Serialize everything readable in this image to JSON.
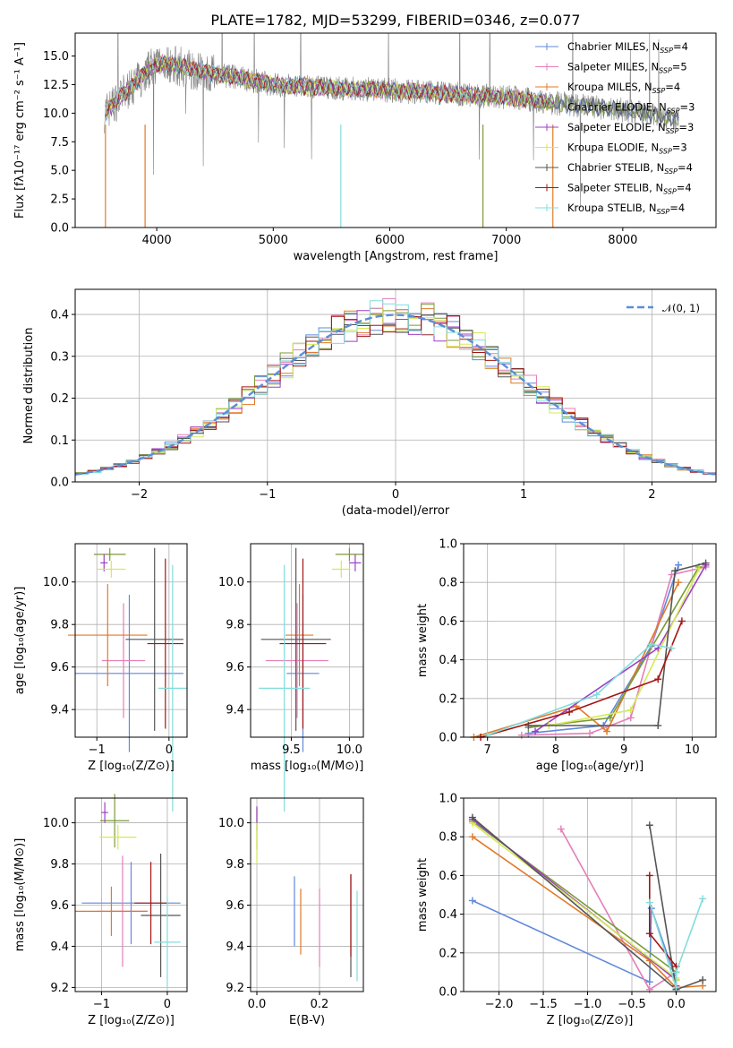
{
  "colors": {
    "chabrier_miles": "#6189dc",
    "salpeter_miles": "#e47fb8",
    "kroupa_miles": "#e07a27",
    "chabrier_elodie": "#7c9a3a",
    "salpeter_elodie": "#9d3fc4",
    "kroupa_elodie": "#d4ea56",
    "chabrier_stelib": "#555555",
    "salpeter_stelib": "#a31414",
    "kroupa_stelib": "#82dcdc",
    "normal_curve": "#5b8ed6",
    "data_spectrum": "#808080"
  },
  "chart_data": [
    {
      "id": "spectrum",
      "type": "line",
      "title": "PLATE=1782, MJD=53299, FIBERID=0346, z=0.077",
      "xlabel": "wavelength [Angstrom, rest frame]",
      "ylabel": "Flux [fλ10⁻¹⁷ erg cm⁻² s⁻¹ A⁻¹]",
      "xlim": [
        3300,
        8800
      ],
      "ylim": [
        0,
        17
      ],
      "xticks": [
        "4000",
        "5000",
        "6000",
        "7000",
        "8000"
      ],
      "yticks": [
        "0.0",
        "2.5",
        "5.0",
        "7.5",
        "10.0",
        "12.5",
        "15.0"
      ],
      "continuum_model": [
        [
          3550,
          10.0
        ],
        [
          3700,
          11.5
        ],
        [
          3850,
          13.0
        ],
        [
          3950,
          14.0
        ],
        [
          4050,
          14.5
        ],
        [
          4300,
          13.8
        ],
        [
          4500,
          13.5
        ],
        [
          5000,
          12.5
        ],
        [
          5500,
          12.2
        ],
        [
          6000,
          12.0
        ],
        [
          6500,
          11.7
        ],
        [
          7000,
          11.4
        ],
        [
          7500,
          10.8
        ],
        [
          8000,
          10.3
        ],
        [
          8500,
          9.4
        ]
      ],
      "legend": [
        {
          "label": "Chabrier MILES, N",
          "sub": "SSP",
          "suffix": "=4",
          "color": "#6189dc"
        },
        {
          "label": "Salpeter MILES, N",
          "sub": "SSP",
          "suffix": "=5",
          "color": "#e47fb8"
        },
        {
          "label": "Kroupa MILES, N",
          "sub": "SSP",
          "suffix": "=4",
          "color": "#e07a27"
        },
        {
          "label": "Chabrier ELODIE, N",
          "sub": "SSP",
          "suffix": "=3",
          "color": "#7c9a3a"
        },
        {
          "label": "Salpeter ELODIE, N",
          "sub": "SSP",
          "suffix": "=3",
          "color": "#9d3fc4"
        },
        {
          "label": "Kroupa ELODIE, N",
          "sub": "SSP",
          "suffix": "=3",
          "color": "#d4ea56"
        },
        {
          "label": "Chabrier STELIB, N",
          "sub": "SSP",
          "suffix": "=4",
          "color": "#555555"
        },
        {
          "label": "Salpeter STELIB, N",
          "sub": "SSP",
          "suffix": "=4",
          "color": "#a31414"
        },
        {
          "label": "Kroupa STELIB, N",
          "sub": "SSP",
          "suffix": "=4",
          "color": "#82dcdc"
        }
      ]
    },
    {
      "id": "residuals",
      "type": "histogram",
      "xlabel": "(data-model)/error",
      "ylabel": "Normed distribution",
      "xlim": [
        -2.5,
        2.5
      ],
      "ylim": [
        0,
        0.46
      ],
      "xticks": [
        -2,
        -1,
        0,
        1,
        2
      ],
      "xtick_labels": [
        "−2",
        "−1",
        "0",
        "1",
        "2"
      ],
      "yticks": [
        0.0,
        0.1,
        0.2,
        0.3,
        0.4
      ],
      "ytick_labels": [
        "0.0",
        "0.1",
        "0.2",
        "0.3",
        "0.4"
      ],
      "bin_width": 0.1,
      "legend_label": "𝒩(0, 1)",
      "grid": true
    },
    {
      "id": "age_vs_Z",
      "type": "errorbar",
      "xlabel": "Z [log₁₀(Z/Z⊙)]",
      "ylabel": "age  [log₁₀(age/yr)]",
      "xlim": [
        -1.3,
        0.25
      ],
      "ylim": [
        9.27,
        10.18
      ],
      "xticks": [
        -1,
        0
      ],
      "xtick_labels": [
        "−1",
        "0"
      ],
      "yticks": [
        9.4,
        9.6,
        9.8,
        10.0
      ],
      "ytick_labels": [
        "9.4",
        "9.6",
        "9.8",
        "10.0"
      ],
      "points": [
        {
          "c": "#6189dc",
          "x": -0.55,
          "xerr": 0.75,
          "y": 9.57,
          "yerr": 0.37
        },
        {
          "c": "#e47fb8",
          "x": -0.63,
          "xerr": 0.3,
          "y": 9.63,
          "yerr": 0.27
        },
        {
          "c": "#e07a27",
          "x": -0.85,
          "xerr": 0.55,
          "y": 9.75,
          "yerr": 0.24
        },
        {
          "c": "#7c9a3a",
          "x": -0.82,
          "xerr": 0.22,
          "y": 10.13,
          "yerr": 0.03
        },
        {
          "c": "#9d3fc4",
          "x": -0.9,
          "xerr": 0.05,
          "y": 10.09,
          "yerr": 0.04
        },
        {
          "c": "#d4ea56",
          "x": -0.8,
          "xerr": 0.2,
          "y": 10.06,
          "yerr": 0.04
        },
        {
          "c": "#555555",
          "x": -0.2,
          "xerr": 0.4,
          "y": 9.73,
          "yerr": 0.43
        },
        {
          "c": "#a31414",
          "x": -0.05,
          "xerr": 0.25,
          "y": 9.71,
          "yerr": 0.4
        },
        {
          "c": "#82dcdc",
          "x": 0.05,
          "xerr": 0.2,
          "y": 9.5,
          "yerr": 0.58
        }
      ]
    },
    {
      "id": "age_vs_mass",
      "type": "errorbar",
      "xlabel": "mass [log₁₀(M/M⊙)]",
      "ylabel": "",
      "xlim": [
        9.15,
        10.12
      ],
      "ylim": [
        9.27,
        10.18
      ],
      "xticks": [
        9.5,
        10.0
      ],
      "xtick_labels": [
        "9.5",
        "10.0"
      ],
      "yticks": [
        9.4,
        9.6,
        9.8,
        10.0
      ],
      "ytick_labels": [
        "9.4",
        "9.6",
        "9.8",
        "10.0"
      ],
      "points": [
        {
          "c": "#6189dc",
          "x": 9.6,
          "xerr": 0.14,
          "y": 9.57,
          "yerr": 0.37
        },
        {
          "c": "#e47fb8",
          "x": 9.55,
          "xerr": 0.27,
          "y": 9.63,
          "yerr": 0.27
        },
        {
          "c": "#e07a27",
          "x": 9.57,
          "xerr": 0.12,
          "y": 9.75,
          "yerr": 0.24
        },
        {
          "c": "#7c9a3a",
          "x": 10.0,
          "xerr": 0.12,
          "y": 10.13,
          "yerr": 0.03
        },
        {
          "c": "#9d3fc4",
          "x": 10.05,
          "xerr": 0.05,
          "y": 10.09,
          "yerr": 0.04
        },
        {
          "c": "#d4ea56",
          "x": 9.93,
          "xerr": 0.08,
          "y": 10.06,
          "yerr": 0.04
        },
        {
          "c": "#555555",
          "x": 9.54,
          "xerr": 0.3,
          "y": 9.73,
          "yerr": 0.43
        },
        {
          "c": "#a31414",
          "x": 9.6,
          "xerr": 0.2,
          "y": 9.71,
          "yerr": 0.4
        },
        {
          "c": "#82dcdc",
          "x": 9.44,
          "xerr": 0.22,
          "y": 9.5,
          "yerr": 0.58
        }
      ]
    },
    {
      "id": "weight_vs_age",
      "type": "line",
      "xlabel": "age  [log₁₀(age/yr)]",
      "ylabel": "mass weight",
      "xlim": [
        6.65,
        10.35
      ],
      "ylim": [
        0,
        1
      ],
      "xticks": [
        7,
        8,
        9,
        10
      ],
      "xtick_labels": [
        "7",
        "8",
        "9",
        "10"
      ],
      "yticks": [
        0,
        0.2,
        0.4,
        0.6,
        0.8,
        1.0
      ],
      "ytick_labels": [
        "0.0",
        "0.2",
        "0.4",
        "0.6",
        "0.8",
        "1.0"
      ],
      "series": [
        {
          "c": "#6189dc",
          "pts": [
            [
              7.6,
              0.02
            ],
            [
              8.7,
              0.06
            ],
            [
              9.4,
              0.47
            ],
            [
              9.8,
              0.89
            ]
          ]
        },
        {
          "c": "#e47fb8",
          "pts": [
            [
              7.5,
              0.01
            ],
            [
              8.5,
              0.02
            ],
            [
              9.1,
              0.1
            ],
            [
              9.7,
              0.84
            ],
            [
              10.2,
              0.88
            ]
          ]
        },
        {
          "c": "#e07a27",
          "pts": [
            [
              6.8,
              0.0
            ],
            [
              8.3,
              0.16
            ],
            [
              8.75,
              0.03
            ],
            [
              9.8,
              0.8
            ]
          ]
        },
        {
          "c": "#7c9a3a",
          "pts": [
            [
              7.6,
              0.05
            ],
            [
              8.8,
              0.1
            ],
            [
              10.1,
              0.88
            ]
          ]
        },
        {
          "c": "#9d3fc4",
          "pts": [
            [
              7.7,
              0.03
            ],
            [
              9.5,
              0.46
            ],
            [
              10.2,
              0.89
            ]
          ]
        },
        {
          "c": "#d4ea56",
          "pts": [
            [
              7.9,
              0.06
            ],
            [
              9.1,
              0.14
            ],
            [
              10.1,
              0.87
            ]
          ]
        },
        {
          "c": "#555555",
          "pts": [
            [
              7.6,
              0.06
            ],
            [
              9.5,
              0.06
            ],
            [
              9.75,
              0.86
            ],
            [
              10.2,
              0.9
            ]
          ]
        },
        {
          "c": "#a31414",
          "pts": [
            [
              6.9,
              0.0
            ],
            [
              8.2,
              0.13
            ],
            [
              9.5,
              0.3
            ],
            [
              9.85,
              0.6
            ]
          ]
        },
        {
          "c": "#82dcdc",
          "pts": [
            [
              7.0,
              0.01
            ],
            [
              8.6,
              0.22
            ],
            [
              9.4,
              0.48
            ],
            [
              9.7,
              0.46
            ]
          ]
        }
      ]
    },
    {
      "id": "mass_vs_Z",
      "type": "errorbar",
      "xlabel": "Z [log₁₀(Z/Z⊙)]",
      "ylabel": "mass [log₁₀(M/M⊙)]",
      "xlim": [
        -1.4,
        0.3
      ],
      "ylim": [
        9.18,
        10.12
      ],
      "xticks": [
        -1,
        0
      ],
      "xtick_labels": [
        "−1",
        "0"
      ],
      "yticks": [
        9.2,
        9.4,
        9.6,
        9.8,
        10.0
      ],
      "ytick_labels": [
        "9.2",
        "9.4",
        "9.6",
        "9.8",
        "10.0"
      ],
      "points": [
        {
          "c": "#6189dc",
          "x": -0.55,
          "xerr": 0.75,
          "y": 9.61,
          "yerr": 0.2
        },
        {
          "c": "#e47fb8",
          "x": -0.68,
          "xerr": 0.38,
          "y": 9.57,
          "yerr": 0.27
        },
        {
          "c": "#e07a27",
          "x": -0.85,
          "xerr": 0.55,
          "y": 9.57,
          "yerr": 0.12
        },
        {
          "c": "#7c9a3a",
          "x": -0.8,
          "xerr": 0.22,
          "y": 10.01,
          "yerr": 0.13
        },
        {
          "c": "#9d3fc4",
          "x": -0.95,
          "xerr": 0.05,
          "y": 10.05,
          "yerr": 0.05
        },
        {
          "c": "#d4ea56",
          "x": -0.75,
          "xerr": 0.28,
          "y": 9.93,
          "yerr": 0.06
        },
        {
          "c": "#555555",
          "x": -0.1,
          "xerr": 0.3,
          "y": 9.55,
          "yerr": 0.3
        },
        {
          "c": "#a31414",
          "x": -0.25,
          "xerr": 0.25,
          "y": 9.61,
          "yerr": 0.2
        },
        {
          "c": "#82dcdc",
          "x": 0.0,
          "xerr": 0.2,
          "y": 9.42,
          "yerr": 0.22
        }
      ]
    },
    {
      "id": "mass_vs_ebv",
      "type": "errorbar",
      "xlabel": "E(B-V)",
      "ylabel": "",
      "xlim": [
        -0.02,
        0.34
      ],
      "ylim": [
        9.18,
        10.12
      ],
      "xticks": [
        0.0,
        0.2
      ],
      "xtick_labels": [
        "0.0",
        "0.2"
      ],
      "yticks": [
        9.2,
        9.4,
        9.6,
        9.8,
        10.0
      ],
      "ytick_labels": [
        "9.2",
        "9.4",
        "9.6",
        "9.8",
        "10.0"
      ],
      "points": [
        {
          "c": "#6189dc",
          "x": 0.12,
          "xerr": 0,
          "y": 9.57,
          "yerr": 0.17
        },
        {
          "c": "#e47fb8",
          "x": 0.2,
          "xerr": 0,
          "y": 9.49,
          "yerr": 0.19
        },
        {
          "c": "#e07a27",
          "x": 0.14,
          "xerr": 0,
          "y": 9.52,
          "yerr": 0.16
        },
        {
          "c": "#7c9a3a",
          "x": 0.0,
          "xerr": 0,
          "y": 9.97,
          "yerr": 0.1
        },
        {
          "c": "#9d3fc4",
          "x": 0.0,
          "xerr": 0,
          "y": 10.02,
          "yerr": 0.06
        },
        {
          "c": "#d4ea56",
          "x": 0.0,
          "xerr": 0,
          "y": 9.9,
          "yerr": 0.1
        },
        {
          "c": "#555555",
          "x": 0.3,
          "xerr": 0,
          "y": 9.5,
          "yerr": 0.25
        },
        {
          "c": "#a31414",
          "x": 0.3,
          "xerr": 0,
          "y": 9.55,
          "yerr": 0.2
        },
        {
          "c": "#82dcdc",
          "x": 0.32,
          "xerr": 0,
          "y": 9.45,
          "yerr": 0.22
        }
      ]
    },
    {
      "id": "weight_vs_Z",
      "type": "line",
      "xlabel": "Z [log₁₀(Z/Z⊙)]",
      "ylabel": "mass weight",
      "xlim": [
        -2.4,
        0.45
      ],
      "ylim": [
        0,
        1
      ],
      "xticks": [
        -2.0,
        -1.5,
        -1.0,
        -0.5,
        0.0
      ],
      "xtick_labels": [
        "−2.0",
        "−1.5",
        "−1.0",
        "−0.5",
        "0.0"
      ],
      "yticks": [
        0,
        0.2,
        0.4,
        0.6,
        0.8,
        1.0
      ],
      "ytick_labels": [
        "0.0",
        "0.2",
        "0.4",
        "0.6",
        "0.8",
        "1.0"
      ],
      "series": [
        {
          "c": "#6189dc",
          "pts": [
            [
              -2.3,
              0.47
            ],
            [
              -0.3,
              0.05
            ],
            [
              -0.28,
              0.43
            ],
            [
              0.0,
              0.06
            ]
          ]
        },
        {
          "c": "#e47fb8",
          "pts": [
            [
              -1.3,
              0.84
            ],
            [
              -0.3,
              0.01
            ],
            [
              0.0,
              0.1
            ]
          ]
        },
        {
          "c": "#e07a27",
          "pts": [
            [
              -2.3,
              0.8
            ],
            [
              -0.3,
              0.16
            ],
            [
              0.0,
              0.02
            ],
            [
              0.3,
              0.03
            ]
          ]
        },
        {
          "c": "#7c9a3a",
          "pts": [
            [
              -2.3,
              0.88
            ],
            [
              0.0,
              0.1
            ],
            [
              0.0,
              0.02
            ]
          ]
        },
        {
          "c": "#9d3fc4",
          "pts": [
            [
              -2.3,
              0.89
            ],
            [
              0.0,
              0.06
            ],
            [
              0.0,
              0.03
            ]
          ]
        },
        {
          "c": "#d4ea56",
          "pts": [
            [
              -2.3,
              0.87
            ],
            [
              0.0,
              0.07
            ],
            [
              0.0,
              0.06
            ]
          ]
        },
        {
          "c": "#555555",
          "pts": [
            [
              -2.3,
              0.9
            ],
            [
              0.0,
              0.01
            ],
            [
              -0.3,
              0.86
            ],
            [
              0.0,
              0.01
            ],
            [
              0.3,
              0.06
            ]
          ]
        },
        {
          "c": "#a31414",
          "pts": [
            [
              -0.3,
              0.6
            ],
            [
              -0.3,
              0.3
            ],
            [
              0.0,
              0.13
            ]
          ]
        },
        {
          "c": "#82dcdc",
          "pts": [
            [
              -0.3,
              0.46
            ],
            [
              0.0,
              0.02
            ],
            [
              0.0,
              0.1
            ],
            [
              0.3,
              0.48
            ]
          ]
        }
      ]
    }
  ]
}
